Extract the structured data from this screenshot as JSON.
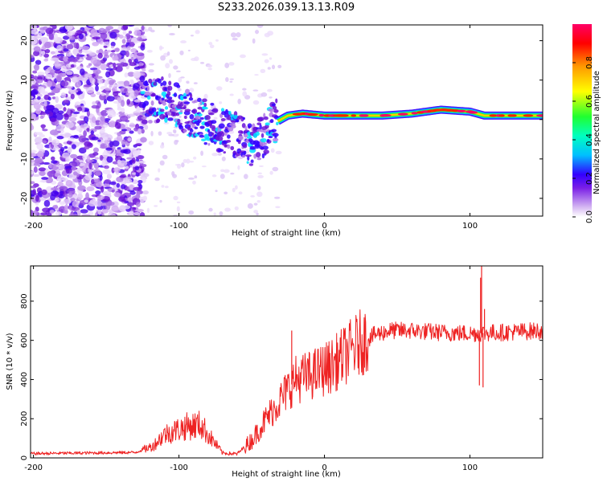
{
  "title": "S233.2026.039.13.13.R09",
  "chart_data": [
    {
      "type": "heatmap",
      "name": "spectrogram",
      "title": "S233.2026.039.13.13.R09",
      "xlabel": "Height of straight line (km)",
      "ylabel": "Frequency (Hz)",
      "xlim": [
        -202,
        150
      ],
      "ylim": [
        -24.5,
        24
      ],
      "xticks": [
        -200,
        -100,
        0,
        100
      ],
      "yticks": [
        -20,
        -10,
        0,
        10,
        20
      ],
      "ridge": [
        {
          "x": -125,
          "f": 4
        },
        {
          "x": -110,
          "f": 5
        },
        {
          "x": -100,
          "f": 3
        },
        {
          "x": -90,
          "f": 1
        },
        {
          "x": -80,
          "f": -1
        },
        {
          "x": -70,
          "f": -3
        },
        {
          "x": -60,
          "f": -4
        },
        {
          "x": -50,
          "f": -6
        },
        {
          "x": -42,
          "f": -4
        },
        {
          "x": -35,
          "f": -1
        },
        {
          "x": -30,
          "f": 0
        },
        {
          "x": -25,
          "f": 1
        },
        {
          "x": -15,
          "f": 1.5
        },
        {
          "x": 0,
          "f": 1
        },
        {
          "x": 20,
          "f": 1
        },
        {
          "x": 40,
          "f": 1
        },
        {
          "x": 60,
          "f": 1.5
        },
        {
          "x": 80,
          "f": 2.5
        },
        {
          "x": 100,
          "f": 2
        },
        {
          "x": 110,
          "f": 1
        },
        {
          "x": 130,
          "f": 1
        },
        {
          "x": 150,
          "f": 1
        }
      ],
      "colorbar": {
        "label": "Normalized spectral amplitude",
        "ticks": [
          "0.0",
          "0.2",
          "0.4",
          "0.6",
          "0.8"
        ],
        "range": [
          0,
          1
        ],
        "colors": [
          "#ffffff",
          "#d6b8f2",
          "#7a1fe6",
          "#3300ff",
          "#00bfff",
          "#00ffc0",
          "#20ff30",
          "#ffff00",
          "#ff9900",
          "#ff0000",
          "#ff0066"
        ]
      }
    },
    {
      "type": "line",
      "name": "snr",
      "xlabel": "Height of straight line (km)",
      "ylabel": "SNR (10 * v/v)",
      "xlim": [
        -202,
        150
      ],
      "ylim": [
        0,
        980
      ],
      "xticks": [
        -200,
        -100,
        0,
        100
      ],
      "yticks": [
        0,
        200,
        400,
        600,
        800
      ],
      "color": "#ee2222",
      "trend": [
        {
          "x": -202,
          "y": 22
        },
        {
          "x": -130,
          "y": 28
        },
        {
          "x": -118,
          "y": 60
        },
        {
          "x": -110,
          "y": 120
        },
        {
          "x": -95,
          "y": 160
        },
        {
          "x": -85,
          "y": 170
        },
        {
          "x": -78,
          "y": 100
        },
        {
          "x": -70,
          "y": 25
        },
        {
          "x": -60,
          "y": 20
        },
        {
          "x": -50,
          "y": 90
        },
        {
          "x": -40,
          "y": 200
        },
        {
          "x": -30,
          "y": 300
        },
        {
          "x": -20,
          "y": 400
        },
        {
          "x": -10,
          "y": 420
        },
        {
          "x": 5,
          "y": 470
        },
        {
          "x": 15,
          "y": 530
        },
        {
          "x": 25,
          "y": 590
        },
        {
          "x": 35,
          "y": 630
        },
        {
          "x": 45,
          "y": 650
        },
        {
          "x": 60,
          "y": 650
        },
        {
          "x": 80,
          "y": 640
        },
        {
          "x": 100,
          "y": 635
        },
        {
          "x": 120,
          "y": 640
        },
        {
          "x": 150,
          "y": 650
        }
      ],
      "spikes": [
        {
          "x": -22.5,
          "y": 650
        },
        {
          "x": 106.5,
          "y": 370
        },
        {
          "x": 107.3,
          "y": 920
        },
        {
          "x": 108,
          "y": 980
        },
        {
          "x": 109,
          "y": 360
        },
        {
          "x": 110,
          "y": 760
        }
      ]
    }
  ]
}
